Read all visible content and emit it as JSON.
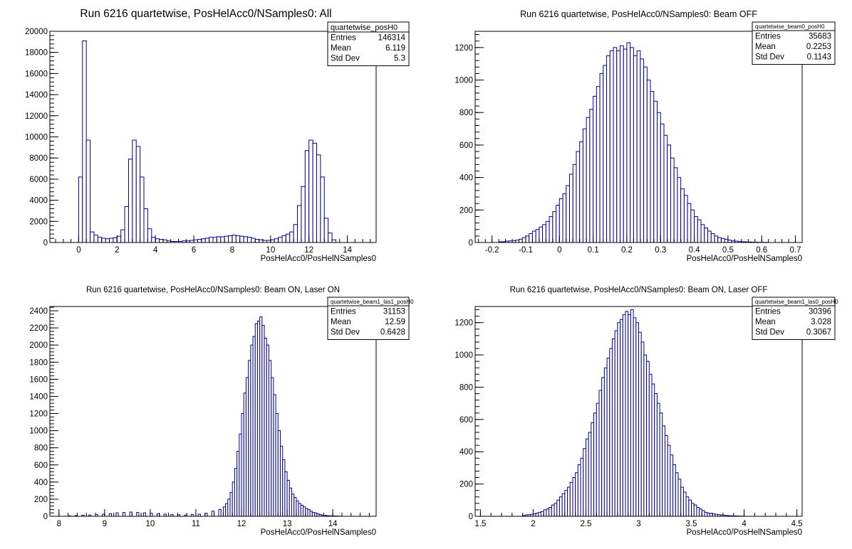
{
  "chart_data": [
    {
      "type": "bar",
      "title": "Run 6216 quartetwise, PosHelAcc0/NSamples0: All",
      "xlabel": "PosHelAcc0/PosHelNSamples0",
      "ylabel": "",
      "xlim": [
        -1.5,
        15.5
      ],
      "ylim": [
        0,
        20000
      ],
      "xticks": [
        0,
        2,
        4,
        6,
        8,
        10,
        12,
        14
      ],
      "yticks": [
        0,
        2000,
        4000,
        6000,
        8000,
        10000,
        12000,
        14000,
        16000,
        18000,
        20000
      ],
      "stats": {
        "name": "quartetwise_posH0",
        "rows": [
          [
            "Entries",
            "146314"
          ],
          [
            "Mean",
            "6.119"
          ],
          [
            "Std Dev",
            "5.3"
          ]
        ]
      },
      "bin_width": 0.2,
      "x": [
        -0.1,
        0.1,
        0.3,
        0.5,
        0.7,
        0.9,
        1.1,
        1.3,
        1.5,
        1.7,
        1.9,
        2.1,
        2.3,
        2.5,
        2.7,
        2.9,
        3.1,
        3.3,
        3.5,
        3.7,
        3.9,
        4.1,
        4.3,
        4.5,
        4.7,
        4.9,
        5.1,
        5.3,
        5.5,
        5.7,
        5.9,
        6.1,
        6.3,
        6.5,
        6.7,
        6.9,
        7.1,
        7.3,
        7.5,
        7.7,
        7.9,
        8.1,
        8.3,
        8.5,
        8.7,
        8.9,
        9.1,
        9.3,
        9.5,
        9.7,
        9.9,
        10.1,
        10.3,
        10.5,
        10.7,
        10.9,
        11.1,
        11.3,
        11.5,
        11.7,
        11.9,
        12.1,
        12.3,
        12.5,
        12.7,
        12.9,
        13.1,
        13.3,
        13.5,
        13.7
      ],
      "values": [
        0,
        6200,
        19100,
        9700,
        1000,
        700,
        500,
        400,
        350,
        400,
        450,
        600,
        1200,
        3400,
        7900,
        9700,
        9100,
        6200,
        3200,
        1300,
        500,
        350,
        300,
        250,
        150,
        100,
        100,
        100,
        150,
        150,
        200,
        250,
        300,
        350,
        400,
        500,
        500,
        550,
        550,
        600,
        650,
        700,
        650,
        600,
        550,
        500,
        400,
        300,
        250,
        200,
        200,
        250,
        350,
        500,
        650,
        800,
        1000,
        1700,
        3500,
        5300,
        8700,
        9700,
        9400,
        8300,
        6200,
        2300,
        900,
        250,
        0,
        0
      ],
      "fill": "#ffffff",
      "stroke": "#000099"
    },
    {
      "type": "bar",
      "title": "Run 6216 quartetwise, PosHelAcc0/NSamples0: Beam OFF",
      "xlabel": "PosHelAcc0/PosHelNSamples0",
      "ylabel": "",
      "xlim": [
        -0.25,
        0.72
      ],
      "ylim": [
        0,
        1300
      ],
      "xticks": [
        -0.2,
        -0.1,
        0,
        0.1,
        0.2,
        0.3,
        0.4,
        0.5,
        0.6,
        0.7
      ],
      "yticks": [
        0,
        200,
        400,
        600,
        800,
        1000,
        1200
      ],
      "stats": {
        "name": "quartetwise_beam0_posH0",
        "rows": [
          [
            "Entries",
            "35683"
          ],
          [
            "Mean",
            "0.2253"
          ],
          [
            "Std Dev",
            "0.1143"
          ]
        ]
      },
      "bin_width": 0.01,
      "x": [
        -0.175,
        -0.165,
        -0.155,
        -0.145,
        -0.135,
        -0.125,
        -0.115,
        -0.105,
        -0.095,
        -0.085,
        -0.075,
        -0.065,
        -0.055,
        -0.045,
        -0.035,
        -0.025,
        -0.015,
        -0.005,
        0.005,
        0.015,
        0.025,
        0.035,
        0.045,
        0.055,
        0.065,
        0.075,
        0.085,
        0.095,
        0.105,
        0.115,
        0.125,
        0.135,
        0.145,
        0.155,
        0.165,
        0.175,
        0.185,
        0.195,
        0.205,
        0.215,
        0.225,
        0.235,
        0.245,
        0.255,
        0.265,
        0.275,
        0.285,
        0.295,
        0.305,
        0.315,
        0.325,
        0.335,
        0.345,
        0.355,
        0.365,
        0.375,
        0.385,
        0.395,
        0.405,
        0.415,
        0.425,
        0.435,
        0.445,
        0.455,
        0.465,
        0.475,
        0.485,
        0.495,
        0.505,
        0.515,
        0.525,
        0.535,
        0.545,
        0.555,
        0.565,
        0.575,
        0.585,
        0.595,
        0.605,
        0.615,
        0.625
      ],
      "values": [
        5,
        5,
        8,
        10,
        12,
        15,
        20,
        30,
        40,
        55,
        70,
        80,
        95,
        110,
        130,
        160,
        190,
        230,
        270,
        300,
        350,
        420,
        480,
        560,
        620,
        700,
        770,
        820,
        900,
        960,
        1040,
        1090,
        1150,
        1180,
        1200,
        1180,
        1210,
        1190,
        1230,
        1200,
        1150,
        1180,
        1130,
        1080,
        1000,
        930,
        870,
        800,
        730,
        660,
        600,
        520,
        460,
        400,
        330,
        290,
        240,
        200,
        160,
        140,
        110,
        90,
        70,
        55,
        40,
        30,
        25,
        20,
        15,
        10,
        8,
        6,
        5,
        4,
        3,
        2,
        2,
        1,
        1,
        1,
        0
      ],
      "fill": "#ffffff",
      "stroke": "#000099"
    },
    {
      "type": "bar",
      "title": "Run 6216 quartetwise, PosHelAcc0/NSamples0: Beam ON, Laser ON",
      "xlabel": "PosHelAcc0/PosHelNSamples0",
      "ylabel": "",
      "xlim": [
        7.8,
        14.95
      ],
      "ylim": [
        0,
        2450
      ],
      "xticks": [
        8,
        9,
        10,
        11,
        12,
        13,
        14
      ],
      "yticks": [
        0,
        200,
        400,
        600,
        800,
        1000,
        1200,
        1400,
        1600,
        1800,
        2000,
        2200,
        2400
      ],
      "stats": {
        "name": "quartetwise_beam1_las1_posH0",
        "rows": [
          [
            "Entries",
            "31153"
          ],
          [
            "Mean",
            "12.59"
          ],
          [
            "Std Dev",
            "0.6428"
          ]
        ]
      },
      "bin_width": 0.05,
      "x": [
        8.225,
        8.375,
        8.525,
        8.675,
        8.825,
        8.975,
        9.125,
        9.275,
        9.425,
        9.575,
        9.725,
        9.875,
        10.025,
        10.175,
        10.325,
        10.475,
        10.625,
        10.775,
        10.925,
        11.075,
        11.225,
        11.375,
        11.525,
        11.625,
        11.675,
        11.725,
        11.775,
        11.825,
        11.875,
        11.925,
        11.975,
        12.025,
        12.075,
        12.125,
        12.175,
        12.225,
        12.275,
        12.325,
        12.375,
        12.425,
        12.475,
        12.525,
        12.575,
        12.625,
        12.675,
        12.725,
        12.775,
        12.825,
        12.875,
        12.925,
        12.975,
        13.025,
        13.075,
        13.125,
        13.175,
        13.225,
        13.275,
        13.325,
        13.375,
        13.425,
        13.475,
        13.525,
        13.575,
        13.625,
        13.675,
        13.725,
        13.775,
        13.825,
        13.875,
        13.925,
        13.975,
        14.025,
        14.075,
        14.125,
        14.175
      ],
      "values": [
        5,
        8,
        12,
        15,
        20,
        25,
        30,
        40,
        45,
        50,
        45,
        40,
        35,
        30,
        25,
        20,
        18,
        15,
        20,
        25,
        35,
        60,
        80,
        110,
        150,
        200,
        280,
        400,
        560,
        760,
        960,
        1200,
        1440,
        1620,
        1820,
        2000,
        2100,
        2250,
        2280,
        2330,
        2230,
        2080,
        2000,
        1820,
        1620,
        1420,
        1200,
        1000,
        820,
        660,
        520,
        420,
        330,
        260,
        220,
        180,
        150,
        130,
        110,
        90,
        80,
        60,
        45,
        40,
        30,
        20,
        15,
        10,
        8,
        6,
        5,
        4,
        3,
        2,
        1
      ],
      "fill": "#ffffff",
      "stroke": "#000099"
    },
    {
      "type": "bar",
      "title": "Run 6216 quartetwise, PosHelAcc0/NSamples0: Beam ON, Laser OFF",
      "xlabel": "PosHelAcc0/PosHelNSamples0",
      "ylabel": "",
      "xlim": [
        1.45,
        4.55
      ],
      "ylim": [
        0,
        1300
      ],
      "xticks": [
        1.5,
        2,
        2.5,
        3,
        3.5,
        4,
        4.5
      ],
      "yticks": [
        0,
        200,
        400,
        600,
        800,
        1000,
        1200
      ],
      "stats": {
        "name": "quartetwise_beam1_las0_posH0",
        "rows": [
          [
            "Entries",
            "30396"
          ],
          [
            "Mean",
            "3.028"
          ],
          [
            "Std Dev",
            "0.3067"
          ]
        ]
      },
      "bin_width": 0.025,
      "x": [
        1.9125,
        1.9375,
        1.9625,
        1.9875,
        2.0125,
        2.0375,
        2.0625,
        2.0875,
        2.1125,
        2.1375,
        2.1625,
        2.1875,
        2.2125,
        2.2375,
        2.2625,
        2.2875,
        2.3125,
        2.3375,
        2.3625,
        2.3875,
        2.4125,
        2.4375,
        2.4625,
        2.4875,
        2.5125,
        2.5375,
        2.5625,
        2.5875,
        2.6125,
        2.6375,
        2.6625,
        2.6875,
        2.7125,
        2.7375,
        2.7625,
        2.7875,
        2.8125,
        2.8375,
        2.8625,
        2.8875,
        2.9125,
        2.9375,
        2.9625,
        2.9875,
        3.0125,
        3.0375,
        3.0625,
        3.0875,
        3.1125,
        3.1375,
        3.1625,
        3.1875,
        3.2125,
        3.2375,
        3.2625,
        3.2875,
        3.3125,
        3.3375,
        3.3625,
        3.3875,
        3.4125,
        3.4375,
        3.4625,
        3.4875,
        3.5125,
        3.5375,
        3.5625,
        3.5875,
        3.6125,
        3.6375,
        3.6625,
        3.6875,
        3.7125,
        3.7375,
        3.7625,
        3.7875,
        3.8125,
        3.8375,
        3.8625,
        3.8875,
        3.9125,
        3.9375,
        3.9625,
        3.9875,
        4.0125
      ],
      "values": [
        5,
        8,
        10,
        12,
        15,
        20,
        25,
        30,
        40,
        45,
        55,
        70,
        80,
        100,
        120,
        140,
        160,
        180,
        210,
        240,
        270,
        320,
        360,
        420,
        480,
        520,
        580,
        640,
        700,
        780,
        860,
        920,
        980,
        1040,
        1100,
        1150,
        1200,
        1220,
        1250,
        1270,
        1250,
        1280,
        1230,
        1200,
        1140,
        1080,
        1000,
        960,
        880,
        820,
        760,
        700,
        640,
        560,
        500,
        440,
        380,
        320,
        270,
        230,
        180,
        150,
        120,
        100,
        80,
        70,
        55,
        45,
        35,
        25,
        20,
        18,
        15,
        12,
        10,
        8,
        6,
        5,
        4,
        3,
        2,
        2,
        1,
        1,
        0
      ],
      "fill": "#ffffff",
      "stroke": "#000099"
    }
  ]
}
